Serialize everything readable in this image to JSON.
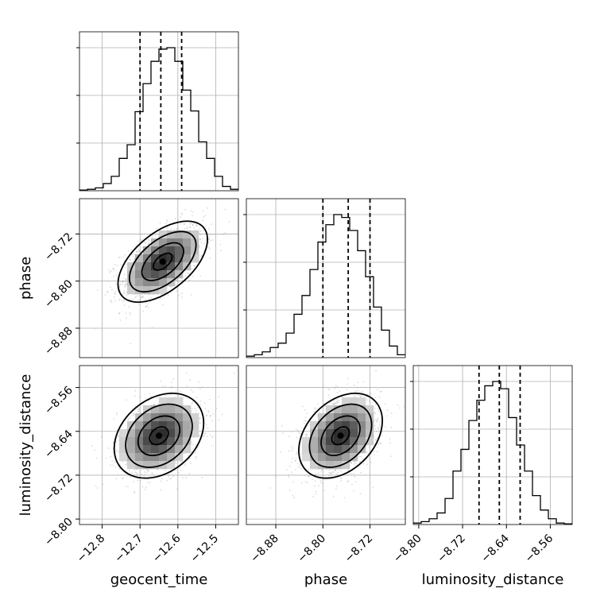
{
  "chart_data": {
    "type": "corner",
    "parameters": [
      {
        "name": "geocent_time",
        "label": "geocent_time",
        "range": [
          -12.86,
          -12.44
        ],
        "ticks": [
          -12.8,
          -12.7,
          -12.6,
          -12.5
        ],
        "tick_labels": [
          "−12.8",
          "−12.7",
          "−12.6",
          "−12.5"
        ],
        "quantiles": [
          -12.7,
          -12.645,
          -12.59
        ],
        "hist_edges_start": -12.86,
        "hist_bin_width": 0.021,
        "hist_counts": [
          0.005,
          0.01,
          0.02,
          0.05,
          0.1,
          0.225,
          0.32,
          0.55,
          0.745,
          0.9,
          0.985,
          0.995,
          0.9,
          0.7,
          0.555,
          0.34,
          0.225,
          0.1,
          0.03,
          0.01
        ]
      },
      {
        "name": "phase",
        "label": "phase",
        "range": [
          -8.93,
          -8.66
        ],
        "ticks": [
          -8.88,
          -8.8,
          -8.72
        ],
        "tick_labels": [
          "−8.88",
          "−8.80",
          "−8.72"
        ],
        "quantiles": [
          -8.8,
          -8.757,
          -8.72
        ],
        "hist_edges_start": -8.93,
        "hist_bin_width": 0.0135,
        "hist_counts": [
          0.01,
          0.02,
          0.04,
          0.07,
          0.1,
          0.17,
          0.3,
          0.43,
          0.61,
          0.8,
          0.92,
          0.99,
          0.97,
          0.88,
          0.74,
          0.56,
          0.35,
          0.19,
          0.08,
          0.02
        ]
      },
      {
        "name": "luminosity_distance",
        "label": "luminosity_distance",
        "range": [
          -8.81,
          -8.52
        ],
        "ticks": [
          -8.8,
          -8.72,
          -8.64,
          -8.56
        ],
        "tick_labels": [
          "−8.80",
          "−8.72",
          "−8.64",
          "−8.56"
        ],
        "quantiles": [
          -8.69,
          -8.653,
          -8.615
        ],
        "hist_edges_start": -8.81,
        "hist_bin_width": 0.0145,
        "hist_counts": [
          0.01,
          0.02,
          0.04,
          0.08,
          0.18,
          0.37,
          0.52,
          0.72,
          0.86,
          0.96,
          0.99,
          0.94,
          0.74,
          0.55,
          0.37,
          0.2,
          0.1,
          0.04,
          0.01,
          0.005
        ]
      }
    ],
    "pairs": [
      {
        "x": "geocent_time",
        "y": "phase",
        "center": [
          -12.64,
          -8.767
        ],
        "sigma": [
          0.055,
          0.032
        ],
        "correlation": 0.55
      },
      {
        "x": "geocent_time",
        "y": "luminosity_distance",
        "center": [
          -12.65,
          -8.648
        ],
        "sigma": [
          0.055,
          0.036
        ],
        "correlation": 0.3
      },
      {
        "x": "phase",
        "y": "luminosity_distance",
        "center": [
          -8.77,
          -8.648
        ],
        "sigma": [
          0.033,
          0.036
        ],
        "correlation": 0.35
      }
    ],
    "grid": true,
    "legend": "none"
  }
}
